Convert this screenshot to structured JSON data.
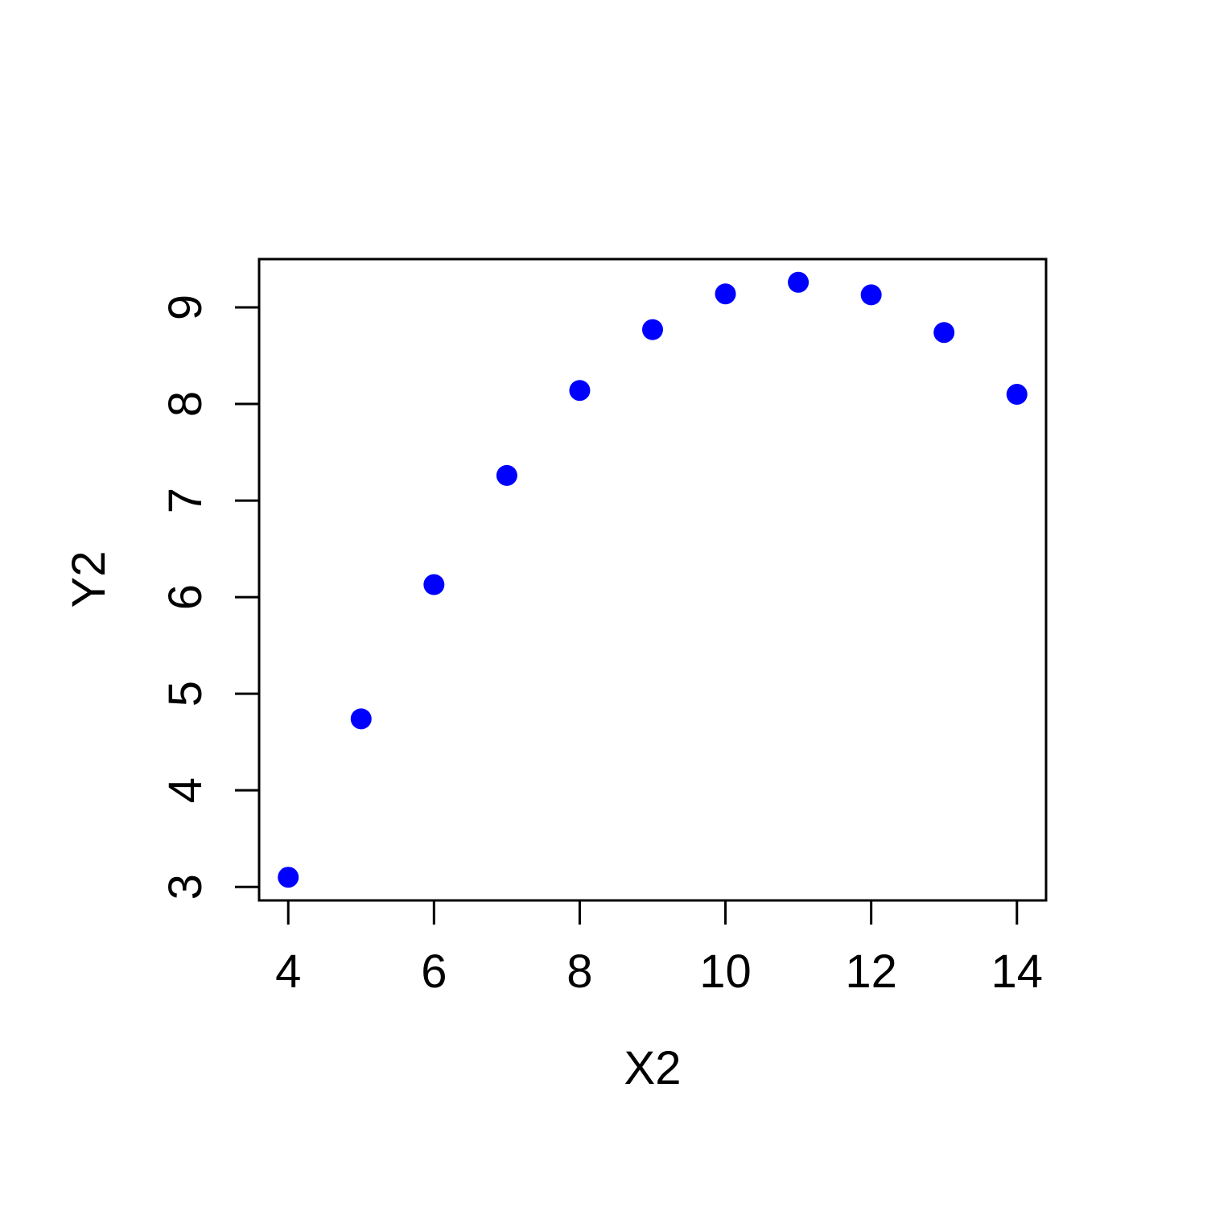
{
  "chart_data": {
    "type": "scatter",
    "title": "",
    "xlabel": "X2",
    "ylabel": "Y2",
    "xlim": [
      3.6,
      14.4
    ],
    "ylim": [
      2.86,
      9.5
    ],
    "xticks": [
      4,
      6,
      8,
      10,
      12,
      14
    ],
    "yticks": [
      3,
      4,
      5,
      6,
      7,
      8,
      9
    ],
    "grid": false,
    "legend": "none",
    "point_color": "#0000ff",
    "x": [
      4,
      5,
      6,
      7,
      8,
      9,
      10,
      11,
      12,
      13,
      14
    ],
    "y": [
      3.1,
      4.74,
      6.13,
      7.26,
      8.14,
      8.77,
      9.14,
      9.26,
      9.13,
      8.74,
      8.1
    ]
  }
}
